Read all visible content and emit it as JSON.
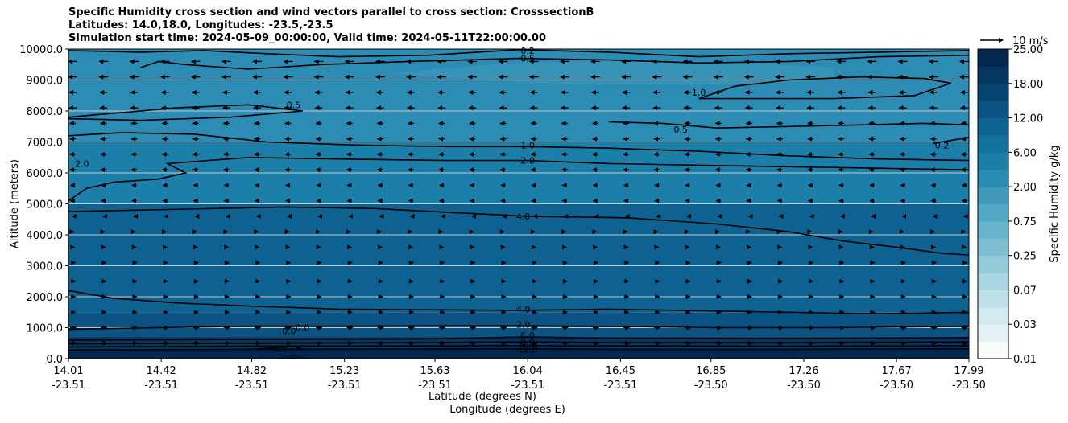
{
  "chart_data": {
    "type": "contourf",
    "title_lines": [
      "Specific Humidity cross section and wind vectors parallel to cross section: CrosssectionB",
      "Latitudes: 14.0,18.0, Longitudes: -23.5,-23.5",
      "Simulation start time: 2024-05-09_00:00:00, Valid time: 2024-05-11T22:00:00.00"
    ],
    "ylabel": "Altitude (meters)",
    "xlabel_lat": "Latitude (degrees N)",
    "xlabel_lon": "Longitude (degrees E)",
    "ylim": [
      0,
      10000
    ],
    "y_ticks": [
      "0.0",
      "1000.0",
      "2000.0",
      "3000.0",
      "4000.0",
      "5000.0",
      "6000.0",
      "7000.0",
      "8000.0",
      "9000.0",
      "10000.0"
    ],
    "x_ticks_lat": [
      "14.01",
      "14.42",
      "14.82",
      "15.23",
      "15.63",
      "16.04",
      "16.45",
      "16.85",
      "17.26",
      "17.67",
      "17.99"
    ],
    "x_ticks_lon": [
      "-23.51",
      "-23.51",
      "-23.51",
      "-23.51",
      "-23.51",
      "-23.51",
      "-23.51",
      "-23.50",
      "-23.50",
      "-23.50",
      "-23.50"
    ],
    "colorbar": {
      "label": "Specific Humidity g/kg",
      "tick_labels": [
        "0.01",
        "0.03",
        "0.07",
        "0.25",
        "0.75",
        "2.00",
        "6.00",
        "12.00",
        "18.00",
        "25.00"
      ],
      "n_levels": 18,
      "colors": [
        "#f7fbfc",
        "#e6f3f6",
        "#d3eaf0",
        "#bfe0e9",
        "#aad5e2",
        "#95cadb",
        "#7fbfd4",
        "#68b3cc",
        "#52a7c4",
        "#3d9abb",
        "#2a8cb2",
        "#1c7fa9",
        "#13719e",
        "#0e6291",
        "#0b5383",
        "#084473",
        "#063562",
        "#042750"
      ]
    },
    "wind_reference_label": "10 m/s",
    "humidity_bands_by_altitude": [
      {
        "top_m": 10000,
        "color": "#2d8cb4"
      },
      {
        "top_m": 7000,
        "color": "#1c7fa9"
      },
      {
        "top_m": 5000,
        "color": "#0e6291"
      },
      {
        "top_m": 1500,
        "color": "#0b5383"
      },
      {
        "top_m": 700,
        "color": "#063562"
      },
      {
        "top_m": 300,
        "color": "#042750"
      }
    ],
    "contour_labels": [
      {
        "text": "0.5",
        "lat_frac": 0.51,
        "alt": 9700
      },
      {
        "text": "0.2",
        "lat_frac": 0.51,
        "alt": 9950
      },
      {
        "text": "0.5",
        "lat_frac": 0.25,
        "alt": 8200
      },
      {
        "text": "1.0",
        "lat_frac": 0.7,
        "alt": 8600
      },
      {
        "text": "0.5",
        "lat_frac": 0.68,
        "alt": 7400
      },
      {
        "text": "0.2",
        "lat_frac": 0.97,
        "alt": 6900
      },
      {
        "text": "2.0",
        "lat_frac": 0.015,
        "alt": 6300
      },
      {
        "text": "1.0",
        "lat_frac": 0.51,
        "alt": 6900
      },
      {
        "text": "2.0",
        "lat_frac": 0.51,
        "alt": 6400
      },
      {
        "text": "4.0",
        "lat_frac": 0.505,
        "alt": 4600
      },
      {
        "text": "4.0",
        "lat_frac": 0.505,
        "alt": 1600
      },
      {
        "text": "2.0",
        "lat_frac": 0.505,
        "alt": 1100
      },
      {
        "text": "6.0",
        "lat_frac": 0.51,
        "alt": 750
      },
      {
        "text": "8.0",
        "lat_frac": 0.51,
        "alt": 550
      },
      {
        "text": "10.0",
        "lat_frac": 0.51,
        "alt": 400
      },
      {
        "text": "12.0",
        "lat_frac": 0.51,
        "alt": 300
      },
      {
        "text": "8.0",
        "lat_frac": 0.235,
        "alt": 330
      },
      {
        "text": "0.0",
        "lat_frac": 0.245,
        "alt": 900
      },
      {
        "text": "0.0",
        "lat_frac": 0.26,
        "alt": 1000
      }
    ],
    "contours": [
      {
        "level": "0.2",
        "points": [
          [
            0.0,
            9950
          ],
          [
            0.08,
            9900
          ],
          [
            0.15,
            9950
          ],
          [
            0.22,
            9850
          ],
          [
            0.3,
            9750
          ],
          [
            0.4,
            9800
          ],
          [
            0.5,
            9980
          ],
          [
            0.6,
            9900
          ],
          [
            0.7,
            9750
          ],
          [
            0.8,
            9850
          ],
          [
            0.9,
            9900
          ],
          [
            1.0,
            9950
          ]
        ]
      },
      {
        "level": "0.5",
        "points": [
          [
            0.08,
            9400
          ],
          [
            0.1,
            9600
          ],
          [
            0.13,
            9500
          ],
          [
            0.2,
            9350
          ],
          [
            0.28,
            9500
          ],
          [
            0.38,
            9600
          ],
          [
            0.5,
            9700
          ],
          [
            0.6,
            9650
          ],
          [
            0.7,
            9550
          ],
          [
            0.8,
            9600
          ],
          [
            0.9,
            9750
          ],
          [
            1.0,
            9800
          ]
        ]
      },
      {
        "level": "0.5",
        "points": [
          [
            0.0,
            7800
          ],
          [
            0.06,
            7950
          ],
          [
            0.12,
            8100
          ],
          [
            0.2,
            8200
          ],
          [
            0.26,
            8000
          ],
          [
            0.18,
            7800
          ],
          [
            0.08,
            7700
          ],
          [
            0.0,
            7750
          ]
        ]
      },
      {
        "level": "1.0",
        "points": [
          [
            0.7,
            8400
          ],
          [
            0.74,
            8800
          ],
          [
            0.8,
            9000
          ],
          [
            0.88,
            9100
          ],
          [
            0.95,
            9050
          ],
          [
            0.98,
            8900
          ],
          [
            0.94,
            8500
          ],
          [
            0.85,
            8400
          ],
          [
            0.78,
            8400
          ],
          [
            0.7,
            8400
          ]
        ]
      },
      {
        "level": "0.5",
        "points": [
          [
            0.6,
            7650
          ],
          [
            0.66,
            7600
          ],
          [
            0.72,
            7450
          ],
          [
            0.8,
            7500
          ],
          [
            0.88,
            7550
          ],
          [
            0.95,
            7600
          ],
          [
            1.0,
            7550
          ]
        ]
      },
      {
        "level": "0.2",
        "points": [
          [
            0.96,
            6950
          ],
          [
            0.99,
            7100
          ],
          [
            1.0,
            7150
          ]
        ]
      },
      {
        "level": "1.0",
        "points": [
          [
            0.0,
            7200
          ],
          [
            0.06,
            7300
          ],
          [
            0.14,
            7250
          ],
          [
            0.22,
            7000
          ],
          [
            0.32,
            6900
          ],
          [
            0.42,
            6850
          ],
          [
            0.51,
            6850
          ],
          [
            0.6,
            6800
          ],
          [
            0.7,
            6700
          ],
          [
            0.8,
            6550
          ],
          [
            0.9,
            6450
          ],
          [
            1.0,
            6400
          ]
        ]
      },
      {
        "level": "2.0",
        "points": [
          [
            0.0,
            5100
          ],
          [
            0.02,
            5500
          ],
          [
            0.05,
            5700
          ],
          [
            0.1,
            5800
          ],
          [
            0.13,
            6000
          ],
          [
            0.11,
            6300
          ],
          [
            0.2,
            6500
          ],
          [
            0.3,
            6450
          ],
          [
            0.42,
            6400
          ],
          [
            0.51,
            6400
          ],
          [
            0.6,
            6300
          ],
          [
            0.7,
            6250
          ],
          [
            0.8,
            6200
          ],
          [
            0.9,
            6150
          ],
          [
            1.0,
            6100
          ]
        ]
      },
      {
        "level": "4.0",
        "points": [
          [
            0.0,
            4750
          ],
          [
            0.08,
            4800
          ],
          [
            0.16,
            4850
          ],
          [
            0.24,
            4900
          ],
          [
            0.34,
            4850
          ],
          [
            0.44,
            4700
          ],
          [
            0.51,
            4600
          ],
          [
            0.62,
            4550
          ],
          [
            0.72,
            4350
          ],
          [
            0.8,
            4100
          ],
          [
            0.86,
            3800
          ],
          [
            0.92,
            3600
          ],
          [
            0.97,
            3400
          ],
          [
            1.0,
            3350
          ]
        ]
      },
      {
        "level": "4.0",
        "points": [
          [
            0.0,
            2200
          ],
          [
            0.05,
            1950
          ],
          [
            0.12,
            1800
          ],
          [
            0.2,
            1700
          ],
          [
            0.3,
            1600
          ],
          [
            0.4,
            1580
          ],
          [
            0.5,
            1560
          ],
          [
            0.6,
            1600
          ],
          [
            0.7,
            1550
          ],
          [
            0.8,
            1500
          ],
          [
            0.9,
            1450
          ],
          [
            1.0,
            1500
          ]
        ]
      },
      {
        "level": "2.0",
        "points": [
          [
            0.0,
            950
          ],
          [
            0.1,
            1000
          ],
          [
            0.2,
            1050
          ],
          [
            0.3,
            1050
          ],
          [
            0.42,
            1060
          ],
          [
            0.51,
            1060
          ],
          [
            0.62,
            1040
          ],
          [
            0.72,
            1000
          ],
          [
            0.85,
            1000
          ],
          [
            1.0,
            1050
          ]
        ]
      },
      {
        "level": "6.0",
        "points": [
          [
            0.0,
            600
          ],
          [
            0.2,
            620
          ],
          [
            0.4,
            640
          ],
          [
            0.51,
            700
          ],
          [
            0.6,
            660
          ],
          [
            0.8,
            650
          ],
          [
            1.0,
            680
          ]
        ]
      },
      {
        "level": "8.0",
        "points": [
          [
            0.0,
            480
          ],
          [
            0.2,
            500
          ],
          [
            0.4,
            520
          ],
          [
            0.51,
            540
          ],
          [
            0.6,
            520
          ],
          [
            0.8,
            520
          ],
          [
            1.0,
            540
          ]
        ]
      },
      {
        "level": "10.0",
        "points": [
          [
            0.0,
            380
          ],
          [
            0.2,
            400
          ],
          [
            0.4,
            410
          ],
          [
            0.51,
            420
          ],
          [
            0.6,
            410
          ],
          [
            0.8,
            400
          ],
          [
            1.0,
            420
          ]
        ]
      },
      {
        "level": "12.0",
        "points": [
          [
            0.0,
            280
          ],
          [
            0.2,
            300
          ],
          [
            0.4,
            310
          ],
          [
            0.51,
            320
          ],
          [
            0.6,
            300
          ],
          [
            0.8,
            300
          ],
          [
            1.0,
            320
          ]
        ]
      },
      {
        "level": "8.0",
        "points": [
          [
            0.2,
            300
          ],
          [
            0.23,
            350
          ],
          [
            0.25,
            400
          ],
          [
            0.26,
            300
          ]
        ]
      }
    ],
    "wind_rows": [
      {
        "alt": 9600,
        "u": -6
      },
      {
        "alt": 9100,
        "u": -6
      },
      {
        "alt": 8600,
        "u": -5
      },
      {
        "alt": 8100,
        "u": -5
      },
      {
        "alt": 7600,
        "u": -4
      },
      {
        "alt": 7100,
        "u": -4
      },
      {
        "alt": 6600,
        "u": -4
      },
      {
        "alt": 6100,
        "u": -4
      },
      {
        "alt": 5600,
        "u": -3
      },
      {
        "alt": 5100,
        "u": -3
      },
      {
        "alt": 4600,
        "u": -1
      },
      {
        "alt": 4100,
        "u": 1
      },
      {
        "alt": 3600,
        "u": 2
      },
      {
        "alt": 3100,
        "u": 3
      },
      {
        "alt": 2500,
        "u": 3
      },
      {
        "alt": 2000,
        "u": 3
      },
      {
        "alt": 1500,
        "u": 3
      },
      {
        "alt": 1000,
        "u": 4
      },
      {
        "alt": 500,
        "u": 4
      }
    ]
  }
}
